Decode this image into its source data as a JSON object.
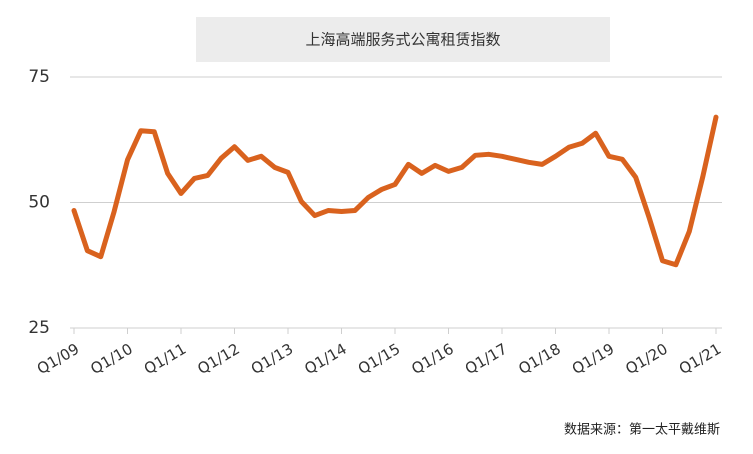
{
  "chart_data": {
    "type": "line",
    "title": "上海高端服务式公寓租赁指数",
    "source": "数据来源：第一太平戴维斯",
    "categories": [
      "Q1/09",
      null,
      null,
      null,
      "Q1/10",
      null,
      null,
      null,
      "Q1/11",
      null,
      null,
      null,
      "Q1/12",
      null,
      null,
      null,
      "Q1/13",
      null,
      null,
      null,
      "Q1/14",
      null,
      null,
      null,
      "Q1/15",
      null,
      null,
      null,
      "Q1/16",
      null,
      null,
      null,
      "Q1/17",
      null,
      null,
      null,
      "Q1/18",
      null,
      null,
      null,
      "Q1/19",
      null,
      null,
      null,
      "Q1/20",
      null,
      null,
      null,
      "Q1/21"
    ],
    "series": [
      {
        "name": "上海高端服务式公寓租赁指数",
        "color": "#d9621e",
        "values": [
          48.4,
          40.4,
          39.2,
          48.2,
          58.5,
          64.3,
          64.1,
          55.8,
          51.8,
          54.8,
          55.4,
          58.8,
          61.1,
          58.4,
          59.2,
          57.0,
          56.0,
          50.2,
          47.4,
          48.4,
          48.2,
          48.4,
          51.0,
          52.6,
          53.6,
          57.6,
          55.8,
          57.4,
          56.2,
          57.0,
          59.4,
          59.6,
          59.2,
          58.6,
          58.0,
          57.6,
          59.2,
          61.0,
          61.8,
          63.8,
          59.2,
          58.6,
          55.0,
          47.0,
          38.4,
          37.6,
          44.2,
          55.0,
          67.0
        ]
      }
    ],
    "ylim": [
      25,
      75
    ],
    "yticks": [
      25,
      50,
      75
    ],
    "grid": true
  }
}
